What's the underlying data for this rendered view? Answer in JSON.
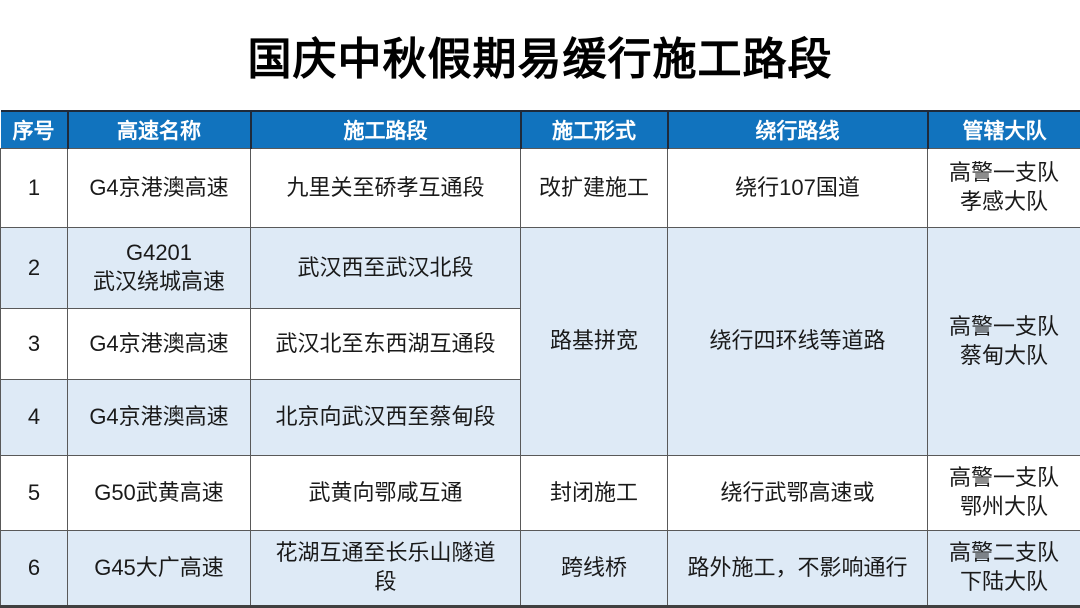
{
  "page": {
    "title": "国庆中秋假期易缓行施工路段"
  },
  "table": {
    "columns": [
      "序号",
      "高速名称",
      "施工路段",
      "施工形式",
      "绕行路线",
      "管辖大队"
    ],
    "rows": [
      {
        "no": "1",
        "name": "G4京港澳高速",
        "section": "九里关至硚孝互通段",
        "type": "改扩建施工",
        "detour": "绕行107国道",
        "brigade": "高警一支队\n孝感大队"
      },
      {
        "no": "2",
        "name": "G4201\n武汉绕城高速",
        "section": "武汉西至武汉北段",
        "type": "路基拼宽",
        "detour": "绕行四环线等道路",
        "brigade": "高警一支队\n蔡甸大队"
      },
      {
        "no": "3",
        "name": "G4京港澳高速",
        "section": "武汉北至东西湖互通段"
      },
      {
        "no": "4",
        "name": "G4京港澳高速",
        "section": "北京向武汉西至蔡甸段"
      },
      {
        "no": "5",
        "name": "G50武黄高速",
        "section": "武黄向鄂咸互通",
        "type": "封闭施工",
        "detour": "绕行武鄂高速或",
        "brigade": "高警一支队\n鄂州大队"
      },
      {
        "no": "6",
        "name": "G45大广高速",
        "section": "花湖互通至长乐山隧道\n段",
        "type": "跨线桥",
        "detour": "路外施工，不影响通行",
        "brigade": "高警二支队\n下陆大队"
      }
    ],
    "colors": {
      "header_bg": "#1173BE",
      "header_text": "#FFFFFF",
      "stripe_bg": "#DEEAF6",
      "row_bg": "#FFFFFF",
      "border": "#595959",
      "body_text": "#1A1A1A",
      "title_color": "#000000"
    }
  }
}
